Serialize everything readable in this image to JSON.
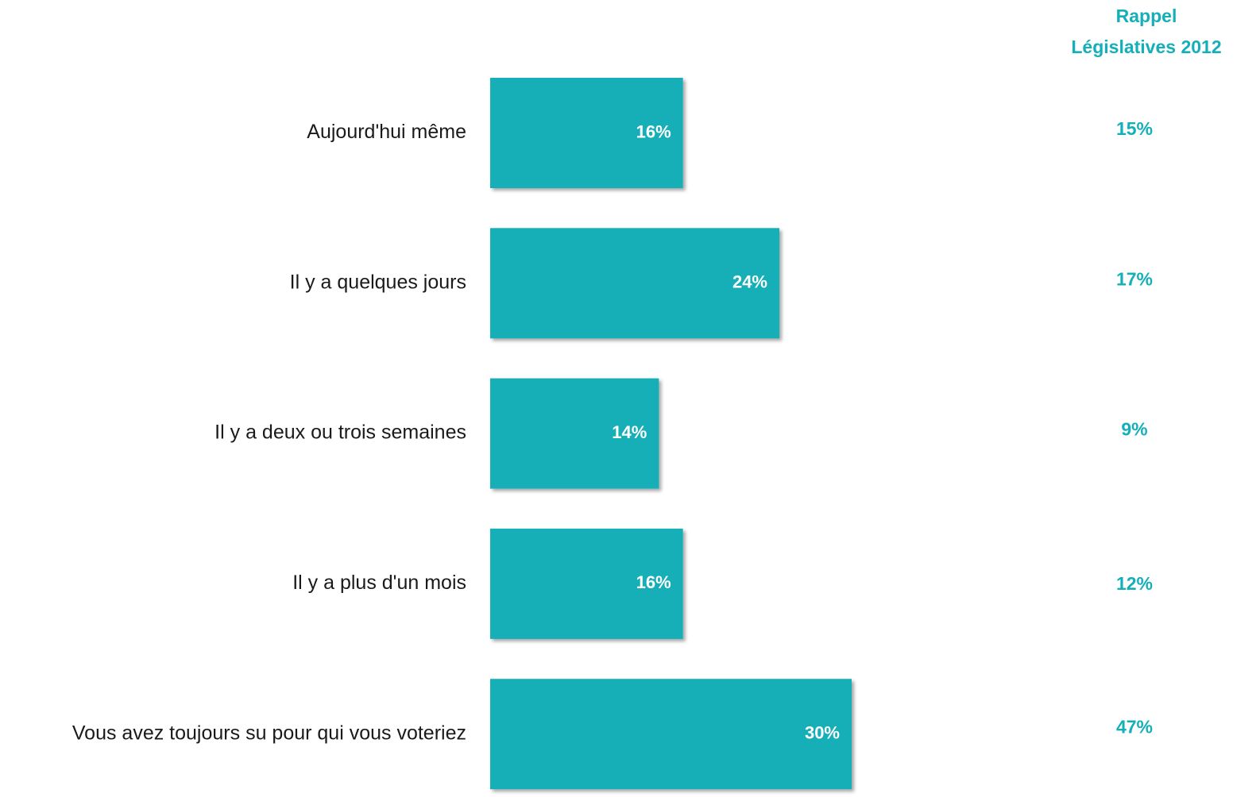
{
  "colors": {
    "bar": "#14AFB8",
    "bar_shadow": "#b3b3b3",
    "accent_text": "#14AFB8",
    "label_text": "#1a1a1a"
  },
  "chart_data": {
    "type": "bar",
    "orientation": "horizontal",
    "categories": [
      "Aujourd'hui même",
      "Il y a quelques jours",
      "Il y a deux ou trois semaines",
      "Il y a plus d'un mois",
      "Vous avez toujours su pour qui vous voteriez"
    ],
    "values": [
      16,
      24,
      14,
      16,
      30
    ],
    "value_labels": [
      "16%",
      "24%",
      "14%",
      "16%",
      "30%"
    ],
    "xlim": [
      0,
      30
    ],
    "grid": false,
    "reference_column": {
      "header_line1": "Rappel",
      "header_line2": "Législatives 2012",
      "values": [
        15,
        17,
        9,
        12,
        47
      ],
      "value_labels": [
        "15%",
        "17%",
        "9%",
        "12%",
        "47%"
      ]
    }
  }
}
